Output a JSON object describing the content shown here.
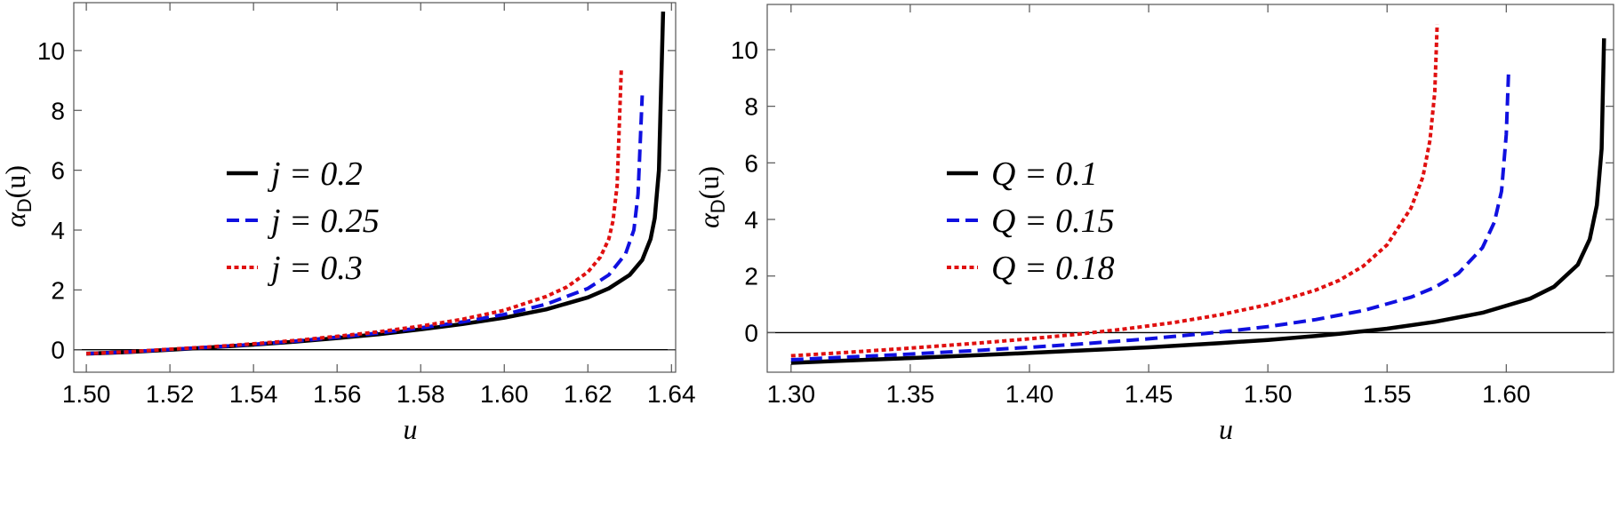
{
  "chart_data": [
    {
      "type": "line",
      "xlabel": "u",
      "ylabel": "α_D(u)",
      "xlim": [
        1.497,
        1.641
      ],
      "ylim": [
        -0.75,
        11.6
      ],
      "xticks": [
        "1.50",
        "1.52",
        "1.54",
        "1.56",
        "1.58",
        "1.60",
        "1.62",
        "1.64"
      ],
      "yticks": [
        "0",
        "2",
        "4",
        "6",
        "8",
        "10"
      ],
      "legend_position": "center-left",
      "series": [
        {
          "name": "j = 0.2",
          "color": "#000000",
          "style": "solid",
          "x": [
            1.5,
            1.51,
            1.52,
            1.53,
            1.54,
            1.55,
            1.56,
            1.57,
            1.58,
            1.59,
            1.6,
            1.61,
            1.62,
            1.625,
            1.63,
            1.633,
            1.635,
            1.636,
            1.637,
            1.638
          ],
          "y": [
            -0.13,
            -0.08,
            0.0,
            0.08,
            0.17,
            0.27,
            0.39,
            0.52,
            0.68,
            0.86,
            1.07,
            1.35,
            1.75,
            2.05,
            2.5,
            3.0,
            3.7,
            4.4,
            6.0,
            11.3
          ]
        },
        {
          "name": "j = 0.25",
          "color": "#1010e0",
          "style": "dashed",
          "x": [
            1.5,
            1.51,
            1.52,
            1.53,
            1.54,
            1.55,
            1.56,
            1.57,
            1.58,
            1.59,
            1.6,
            1.61,
            1.62,
            1.625,
            1.629,
            1.631,
            1.632,
            1.633
          ],
          "y": [
            -0.13,
            -0.07,
            0.01,
            0.09,
            0.18,
            0.29,
            0.42,
            0.56,
            0.73,
            0.93,
            1.18,
            1.52,
            2.05,
            2.5,
            3.2,
            4.0,
            5.2,
            8.5
          ]
        },
        {
          "name": "j = 0.3",
          "color": "#e01010",
          "style": "dotted",
          "x": [
            1.5,
            1.51,
            1.52,
            1.53,
            1.54,
            1.55,
            1.56,
            1.57,
            1.58,
            1.59,
            1.6,
            1.61,
            1.615,
            1.62,
            1.623,
            1.625,
            1.626,
            1.627,
            1.628
          ],
          "y": [
            -0.13,
            -0.07,
            0.02,
            0.1,
            0.2,
            0.31,
            0.45,
            0.6,
            0.79,
            1.02,
            1.32,
            1.78,
            2.1,
            2.6,
            3.1,
            3.7,
            4.3,
            5.5,
            9.4
          ]
        }
      ]
    },
    {
      "type": "line",
      "xlabel": "u",
      "ylabel": "α_D(u)",
      "xlim": [
        1.29,
        1.645
      ],
      "ylim": [
        -1.4,
        11.6
      ],
      "xticks": [
        "1.30",
        "1.35",
        "1.40",
        "1.45",
        "1.50",
        "1.55",
        "1.60"
      ],
      "yticks": [
        "0",
        "2",
        "4",
        "6",
        "8",
        "10"
      ],
      "legend_position": "center-left",
      "series": [
        {
          "name": "Q = 0.1",
          "color": "#000000",
          "style": "solid",
          "x": [
            1.3,
            1.32,
            1.35,
            1.38,
            1.4,
            1.42,
            1.45,
            1.48,
            1.5,
            1.52,
            1.53,
            1.55,
            1.57,
            1.59,
            1.61,
            1.62,
            1.63,
            1.635,
            1.638,
            1.64,
            1.641
          ],
          "y": [
            -1.07,
            -1.0,
            -0.9,
            -0.79,
            -0.72,
            -0.64,
            -0.52,
            -0.37,
            -0.26,
            -0.12,
            -0.04,
            0.14,
            0.38,
            0.7,
            1.2,
            1.62,
            2.4,
            3.3,
            4.5,
            6.5,
            10.4
          ]
        },
        {
          "name": "Q = 0.15",
          "color": "#1010e0",
          "style": "dashed",
          "x": [
            1.3,
            1.32,
            1.35,
            1.38,
            1.4,
            1.42,
            1.45,
            1.48,
            1.5,
            1.52,
            1.54,
            1.56,
            1.57,
            1.58,
            1.59,
            1.595,
            1.598,
            1.6,
            1.601
          ],
          "y": [
            -0.96,
            -0.88,
            -0.76,
            -0.62,
            -0.52,
            -0.41,
            -0.22,
            0.02,
            0.21,
            0.46,
            0.78,
            1.25,
            1.6,
            2.1,
            3.0,
            3.9,
            5.0,
            7.0,
            9.3
          ]
        },
        {
          "name": "Q = 0.18",
          "color": "#e01010",
          "style": "dotted",
          "x": [
            1.3,
            1.32,
            1.35,
            1.38,
            1.4,
            1.42,
            1.44,
            1.46,
            1.48,
            1.5,
            1.52,
            1.53,
            1.54,
            1.55,
            1.56,
            1.565,
            1.568,
            1.57,
            1.571
          ],
          "y": [
            -0.82,
            -0.72,
            -0.55,
            -0.36,
            -0.22,
            -0.06,
            0.13,
            0.35,
            0.63,
            0.99,
            1.5,
            1.85,
            2.35,
            3.1,
            4.4,
            5.5,
            6.8,
            8.5,
            10.9
          ]
        }
      ]
    }
  ]
}
